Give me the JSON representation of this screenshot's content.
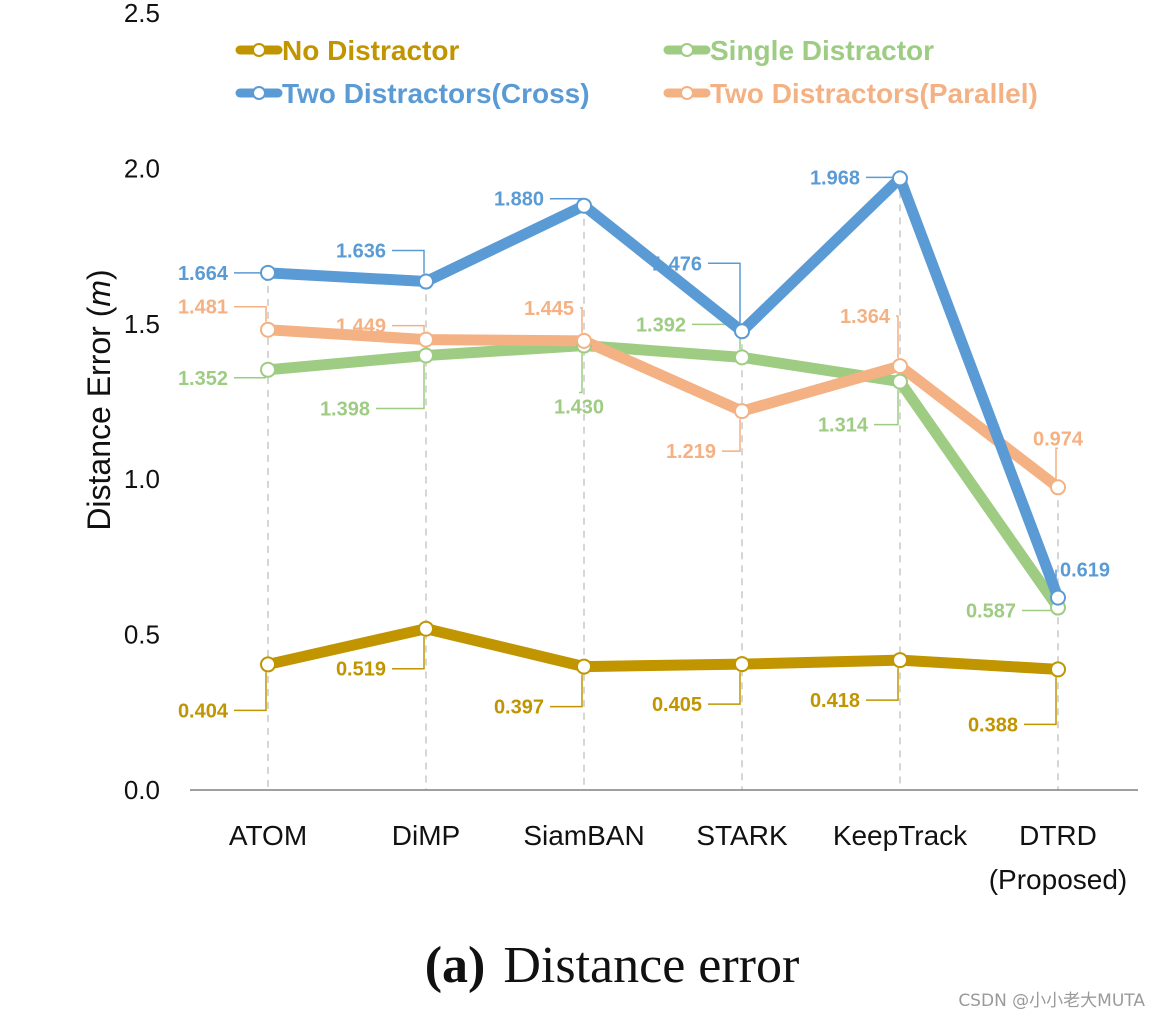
{
  "chart_data": {
    "type": "line",
    "categories": [
      "ATOM",
      "DiMP",
      "SiamBAN",
      "STARK",
      "KeepTrack",
      "DTRD\n(Proposed)"
    ],
    "ylabel_prefix": "Distance Error (",
    "ylabel_unit": "m",
    "ylabel_suffix": ")",
    "ylim": [
      0.0,
      2.5
    ],
    "yticks": [
      "0.0",
      "0.5",
      "1.0",
      "1.5",
      "2.0",
      "2.5"
    ],
    "series": [
      {
        "name": "No Distractor",
        "color": "#c09500",
        "values": [
          0.404,
          0.519,
          0.397,
          0.405,
          0.418,
          0.388
        ],
        "labels": [
          "0.404",
          "0.519",
          "0.397",
          "0.405",
          "0.418",
          "0.388"
        ]
      },
      {
        "name": "Single Distractor",
        "color": "#9dcc82",
        "values": [
          1.352,
          1.398,
          1.43,
          1.392,
          1.314,
          0.587
        ],
        "labels": [
          "1.352",
          "1.398",
          "1.430",
          "1.392",
          "1.314",
          "0.587"
        ]
      },
      {
        "name": "Two Distractors(Cross)",
        "color": "#5b9bd5",
        "values": [
          1.664,
          1.636,
          1.88,
          1.476,
          1.968,
          0.619
        ],
        "labels": [
          "1.664",
          "1.636",
          "1.880",
          "1.476",
          "1.968",
          "0.619"
        ]
      },
      {
        "name": "Two Distractors(Parallel)",
        "color": "#f4b183",
        "values": [
          1.481,
          1.449,
          1.445,
          1.219,
          1.364,
          0.974
        ],
        "labels": [
          "1.481",
          "1.449",
          "1.445",
          "1.219",
          "1.364",
          "0.974"
        ]
      }
    ]
  },
  "caption": {
    "letter": "(a)",
    "text": "Distance error"
  },
  "watermark": "CSDN @小小老大MUTA"
}
